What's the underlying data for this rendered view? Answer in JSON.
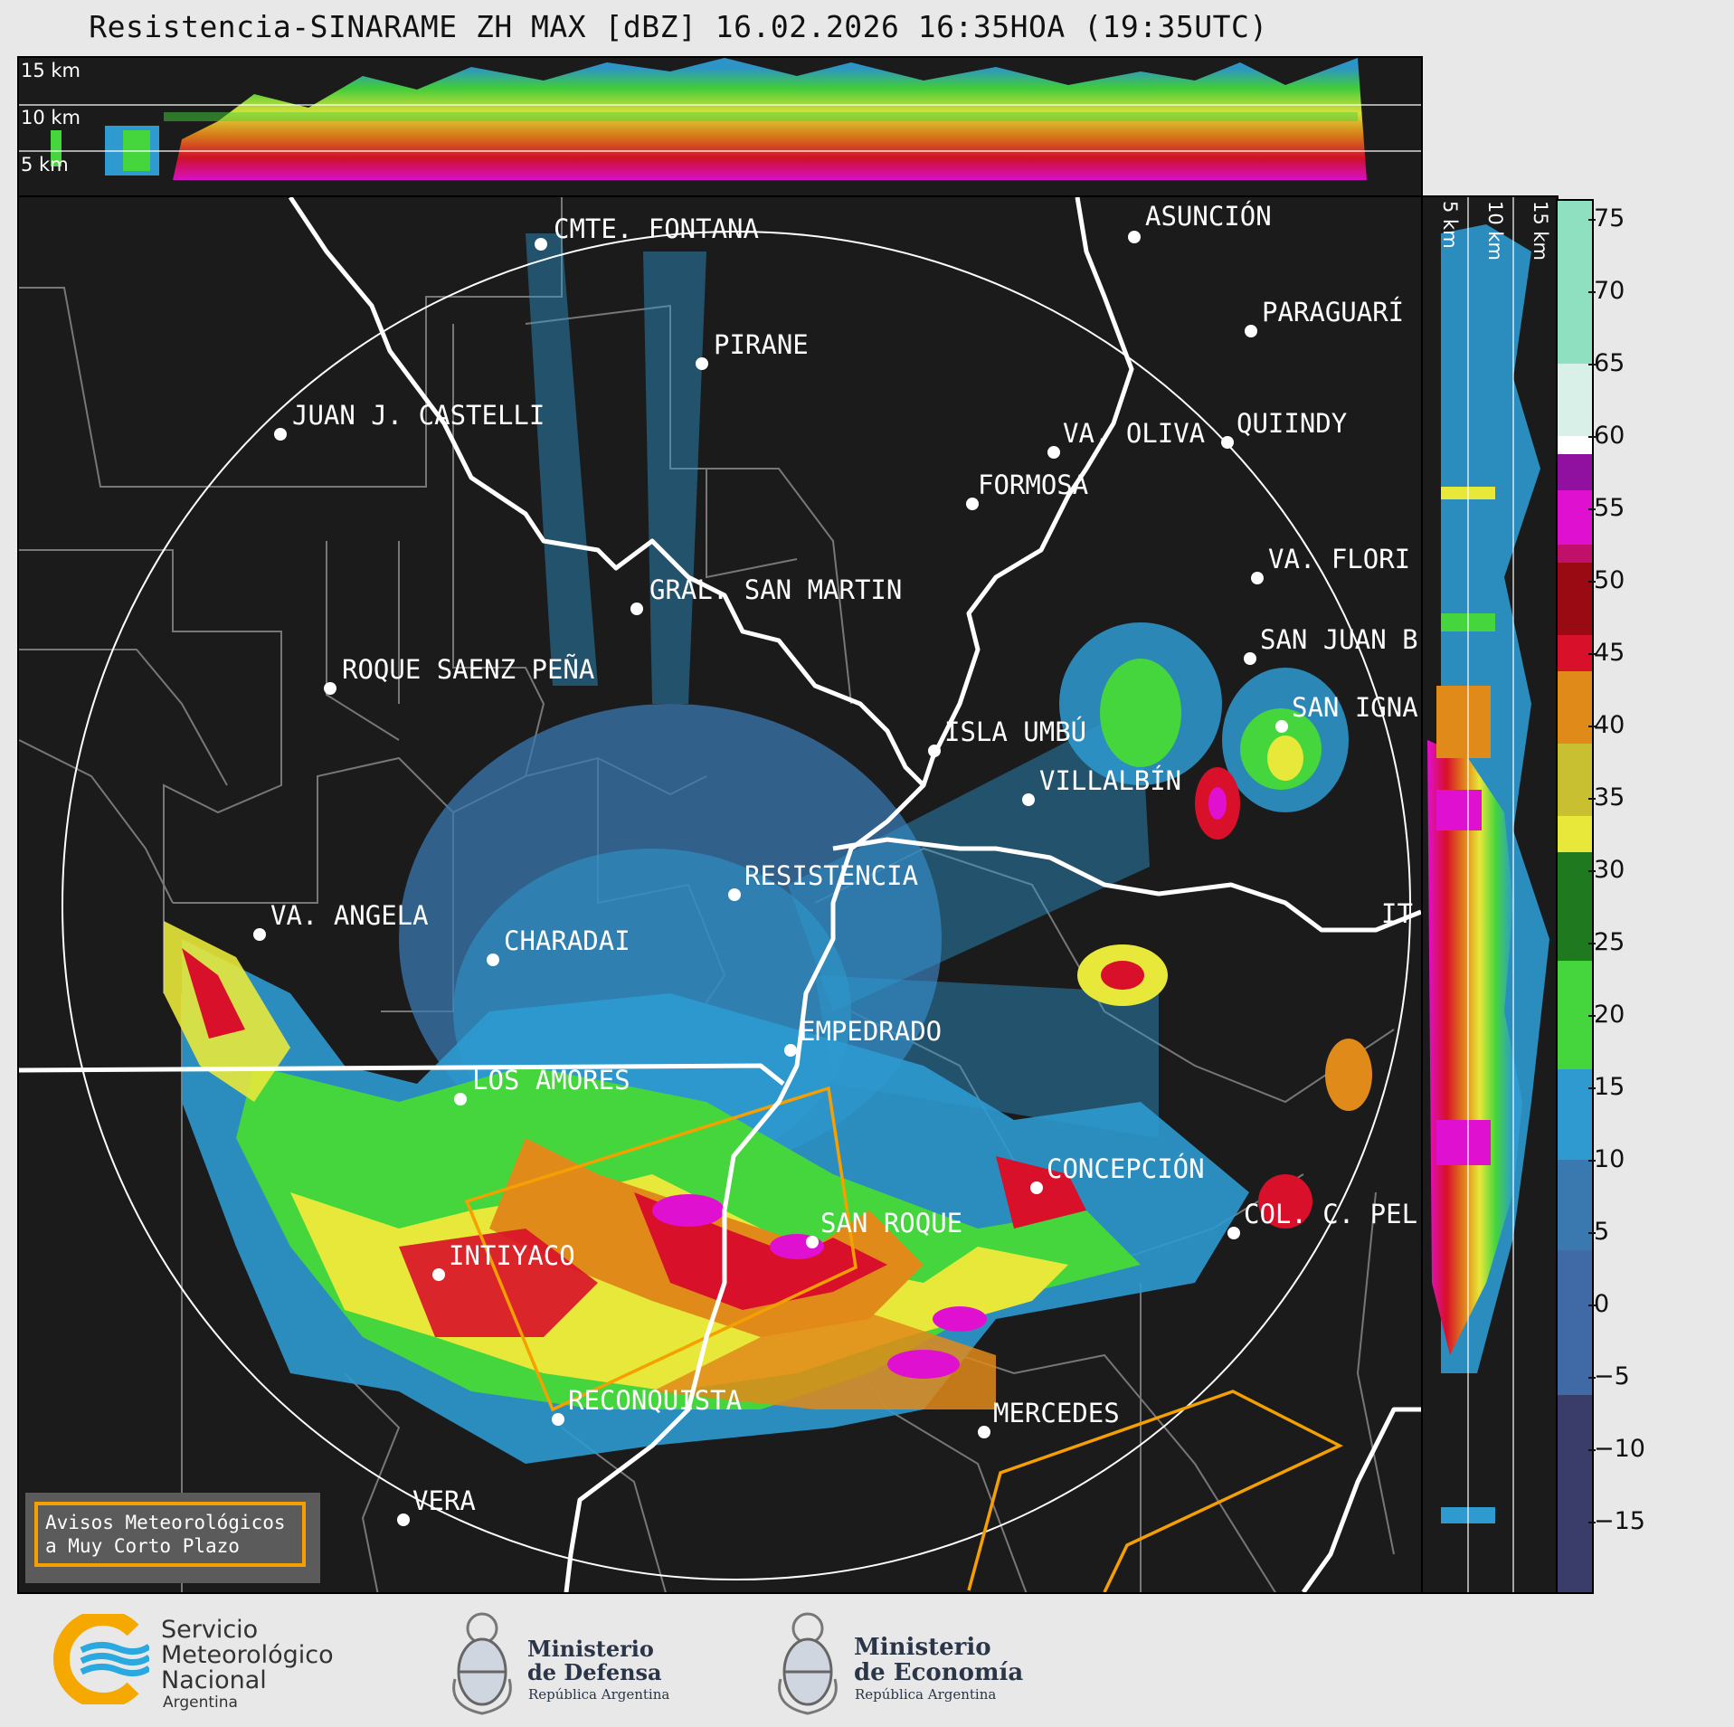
{
  "title": "Resistencia-SINARAME ZH MAX [dBZ] 16.02.2026 16:35HOA (19:35UTC)",
  "top_panel": {
    "height_labels": [
      "15 km",
      "10 km",
      "5 km"
    ]
  },
  "side_panel": {
    "height_labels": [
      "5 km",
      "10 km",
      "15 km"
    ]
  },
  "colorbar": {
    "ticks": [
      "75",
      "70",
      "65",
      "60",
      "55",
      "50",
      "45",
      "40",
      "35",
      "30",
      "25",
      "20",
      "15",
      "10",
      "5",
      "0",
      "−5",
      "−10",
      "−15"
    ],
    "colors": {
      "very_low": "#3a3c6a",
      "low": "#3f6aa5",
      "blue": "#2e9ad0",
      "light_green": "#44d63c",
      "dark_green": "#1f7a1f",
      "yellow": "#e8e83a",
      "orange": "#e08a1a",
      "red": "#d8102a",
      "dark_red": "#9a0a12",
      "magenta": "#e010d0",
      "purple": "#9010a0",
      "white": "#ffffff",
      "mint": "#80e0c0"
    }
  },
  "cities": [
    {
      "name": "CMTE. FONTANA"
    },
    {
      "name": "ASUNCIÓN"
    },
    {
      "name": "PARAGUARÍ"
    },
    {
      "name": "PIRANE"
    },
    {
      "name": "JUAN J. CASTELLI"
    },
    {
      "name": "VA. OLIVA"
    },
    {
      "name": "QUIINDY"
    },
    {
      "name": "FORMOSA"
    },
    {
      "name": "VA. FLORI"
    },
    {
      "name": "GRAL. SAN MARTIN"
    },
    {
      "name": "SAN JUAN B"
    },
    {
      "name": "ROQUE SAENZ PEÑA"
    },
    {
      "name": "SAN IGNA"
    },
    {
      "name": "ISLA UMBÚ"
    },
    {
      "name": "VILLALBÍN"
    },
    {
      "name": "RESISTENCIA"
    },
    {
      "name": "VA. ANGELA"
    },
    {
      "name": "CHARADAI"
    },
    {
      "name": "IT"
    },
    {
      "name": "EMPEDRADO"
    },
    {
      "name": "LOS AMORES"
    },
    {
      "name": "CONCEPCIÓN"
    },
    {
      "name": "COL. C. PEL"
    },
    {
      "name": "SAN ROQUE"
    },
    {
      "name": "INTIYACO"
    },
    {
      "name": "RECONQUISTA"
    },
    {
      "name": "MERCEDES"
    },
    {
      "name": "VERA"
    }
  ],
  "aviso": {
    "line1": "Avisos Meteorológicos",
    "line2": "a Muy Corto Plazo"
  },
  "footer": {
    "smn": {
      "line1": "Servicio",
      "line2": "Meteorológico",
      "line3": "Nacional",
      "line4": "Argentina"
    },
    "defensa": {
      "line1": "Ministerio",
      "line2": "de Defensa",
      "sub": "República Argentina"
    },
    "economia": {
      "line1": "Ministerio",
      "line2": "de Economía",
      "sub": "República Argentina"
    }
  }
}
